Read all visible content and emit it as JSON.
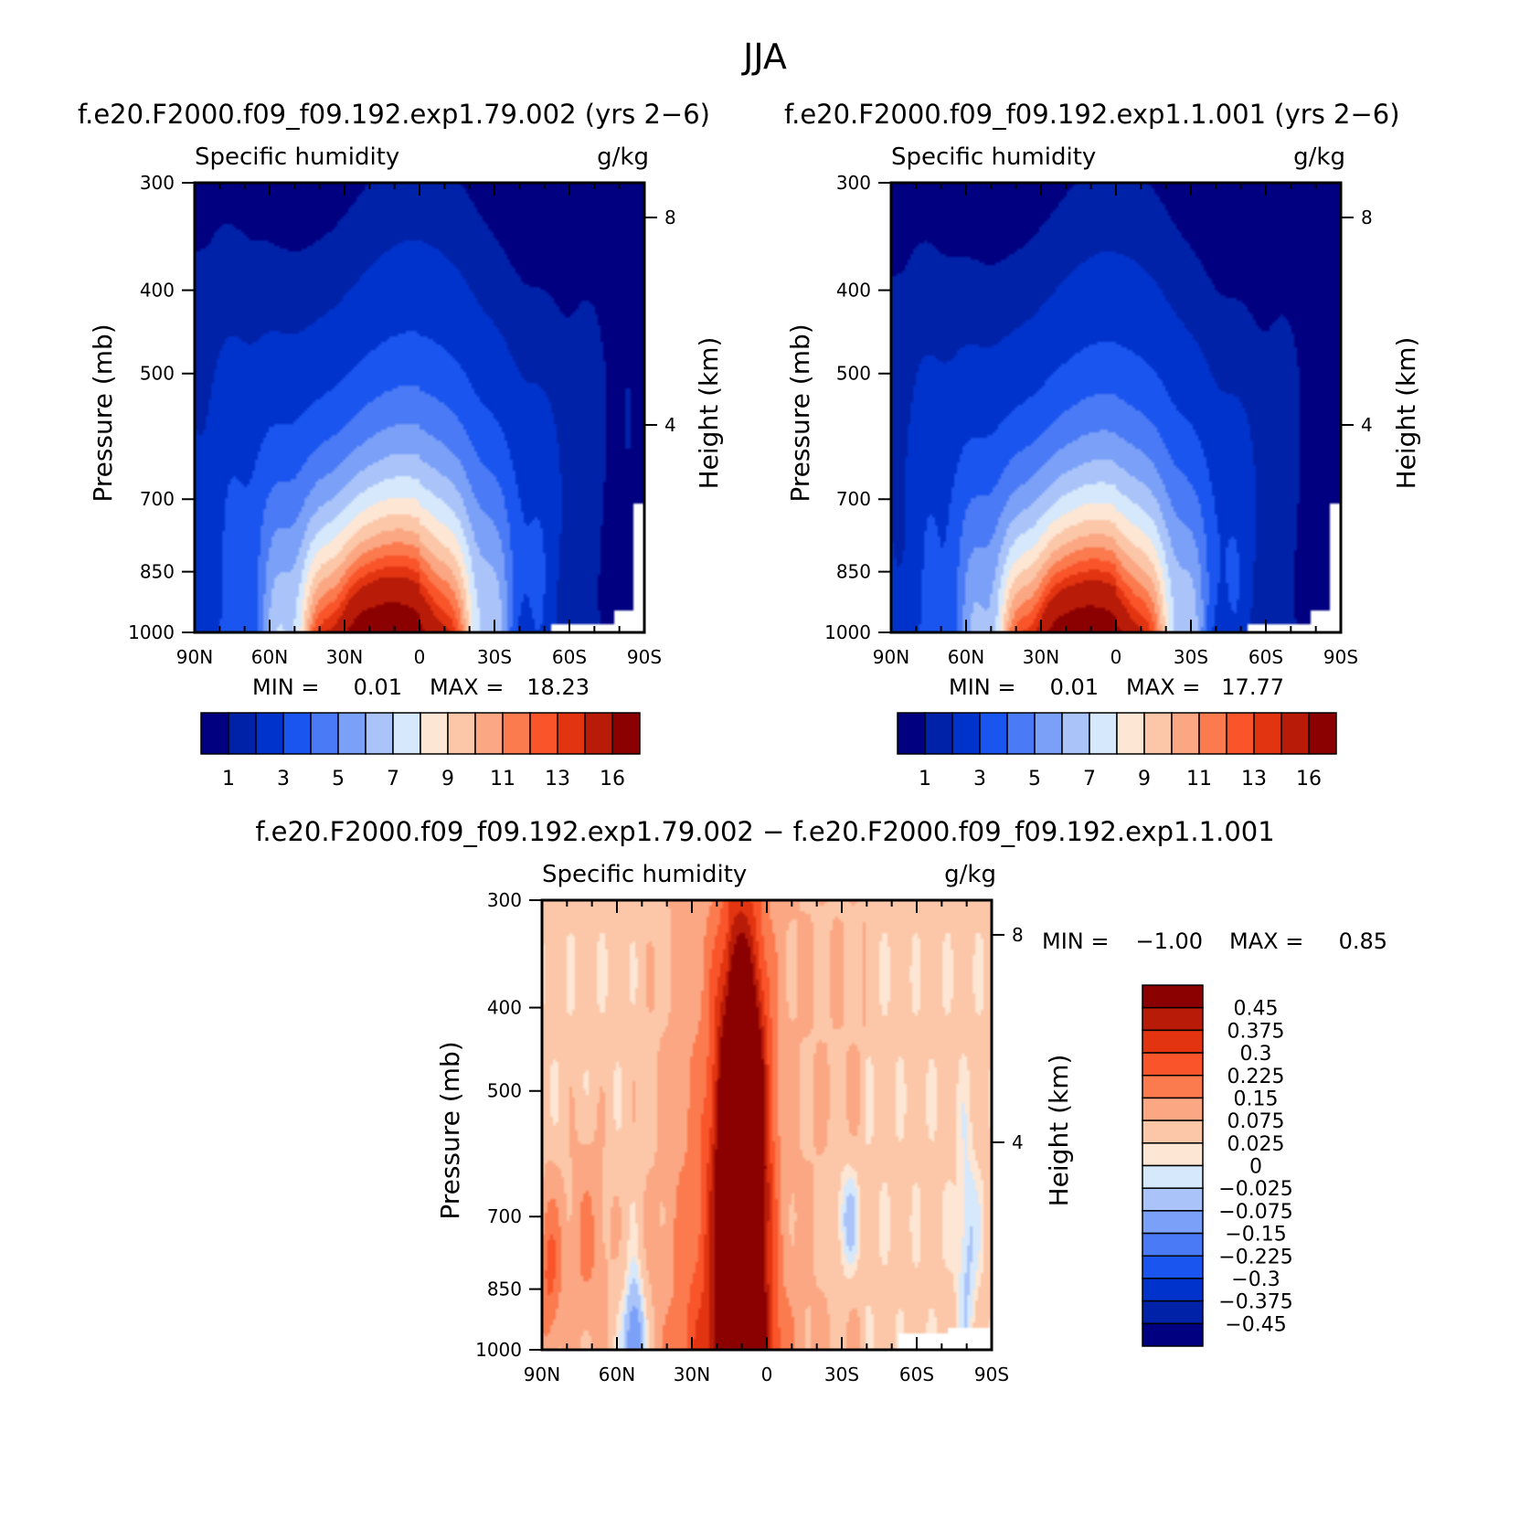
{
  "page_title": "JJA",
  "colors": {
    "abs_palette": [
      "#000080",
      "#0022a8",
      "#0033cc",
      "#1a55f0",
      "#4a7af5",
      "#7aa0f8",
      "#aac4fa",
      "#d6e8fc",
      "#fde6d4",
      "#fcc7a8",
      "#fba783",
      "#fb7a4e",
      "#f9542a",
      "#e23410",
      "#b81b08",
      "#8b0000"
    ],
    "diff_palette": [
      "#000080",
      "#0022a8",
      "#0033cc",
      "#1a55f0",
      "#4a7af5",
      "#7aa0f8",
      "#aac4fa",
      "#d6e8fc",
      "#fde6d4",
      "#fcc7a8",
      "#fba783",
      "#fb7a4e",
      "#f9542a",
      "#e23410",
      "#b81b08",
      "#8b0000"
    ],
    "missing": "#ffffff"
  },
  "chart_data": [
    {
      "type": "heatmap",
      "case_title": "f.e20.F2000.f09_f09.192.exp1.79.002 (yrs 2−6)",
      "variable": "Specific humidity",
      "units": "g/kg",
      "ylabel": "Pressure (mb)",
      "ylabel_right": "Height (km)",
      "x_ticks": [
        "90N",
        "60N",
        "30N",
        "0",
        "30S",
        "60S",
        "90S"
      ],
      "y_ticks": [
        "300",
        "400",
        "500",
        "700",
        "850",
        "1000"
      ],
      "y_ticks_right": [
        "8",
        "4"
      ],
      "xlim": [
        90,
        -90
      ],
      "ylim": [
        1000,
        300
      ],
      "min_label": "MIN =",
      "min_value": "0.01",
      "max_label": "MAX =",
      "max_value": "18.23",
      "colorbar_labels": [
        "1",
        "3",
        "5",
        "7",
        "9",
        "11",
        "13",
        "16"
      ],
      "contour_levels": [
        0.5,
        1,
        2,
        3,
        4,
        5,
        6,
        7,
        8,
        9,
        10,
        11,
        12,
        13,
        16
      ],
      "field": {
        "peak_lat": 12,
        "peak_value": 18.23,
        "scale_height": 2.35,
        "base_width": 35,
        "nh_polar_surface": 1.5,
        "sh_polar_surface": 0.5
      }
    },
    {
      "type": "heatmap",
      "case_title": "f.e20.F2000.f09_f09.192.exp1.1.001 (yrs 2−6)",
      "variable": "Specific humidity",
      "units": "g/kg",
      "ylabel": "Pressure (mb)",
      "ylabel_right": "Height (km)",
      "x_ticks": [
        "90N",
        "60N",
        "30N",
        "0",
        "30S",
        "60S",
        "90S"
      ],
      "y_ticks": [
        "300",
        "400",
        "500",
        "700",
        "850",
        "1000"
      ],
      "y_ticks_right": [
        "8",
        "4"
      ],
      "xlim": [
        90,
        -90
      ],
      "ylim": [
        1000,
        300
      ],
      "min_label": "MIN =",
      "min_value": "0.01",
      "max_label": "MAX =",
      "max_value": "17.77",
      "colorbar_labels": [
        "1",
        "3",
        "5",
        "7",
        "9",
        "11",
        "13",
        "16"
      ],
      "contour_levels": [
        0.5,
        1,
        2,
        3,
        4,
        5,
        6,
        7,
        8,
        9,
        10,
        11,
        12,
        13,
        16
      ],
      "field": {
        "peak_lat": 11,
        "peak_value": 17.77,
        "scale_height": 2.3,
        "base_width": 34,
        "nh_polar_surface": 1.5,
        "sh_polar_surface": 0.5
      }
    },
    {
      "type": "heatmap",
      "case_title": "f.e20.F2000.f09_f09.192.exp1.79.002 − f.e20.F2000.f09_f09.192.exp1.1.001",
      "variable": "Specific humidity",
      "units": "g/kg",
      "ylabel": "Pressure (mb)",
      "ylabel_right": "Height (km)",
      "x_ticks": [
        "90N",
        "60N",
        "30N",
        "0",
        "30S",
        "60S",
        "90S"
      ],
      "y_ticks": [
        "300",
        "400",
        "500",
        "700",
        "850",
        "1000"
      ],
      "y_ticks_right": [
        "8",
        "4"
      ],
      "xlim": [
        90,
        -90
      ],
      "ylim": [
        1000,
        300
      ],
      "min_label": "MIN =",
      "min_value": "−1.00",
      "max_label": "MAX =",
      "max_value": "0.85",
      "colorbar_labels": [
        "0.45",
        "0.375",
        "0.3",
        "0.225",
        "0.15",
        "0.075",
        "0.025",
        "0",
        "−0.025",
        "−0.075",
        "−0.15",
        "−0.225",
        "−0.3",
        "−0.375",
        "−0.45"
      ],
      "contour_levels": [
        -0.45,
        -0.375,
        -0.3,
        -0.225,
        -0.15,
        -0.075,
        -0.025,
        0,
        0.025,
        0.075,
        0.15,
        0.225,
        0.3,
        0.375,
        0.45
      ]
    }
  ]
}
